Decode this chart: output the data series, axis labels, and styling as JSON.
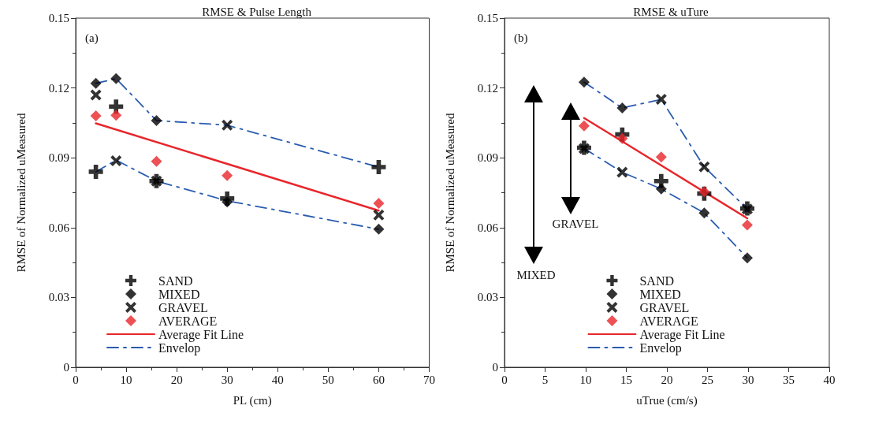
{
  "chart_data": [
    {
      "type": "scatter",
      "title": "RMSE & Pulse Length",
      "xlabel": "PL (cm)",
      "ylabel": "RMSE of Normalized uMeasured",
      "annotations": [
        "(a)"
      ],
      "x": [
        4,
        8,
        16,
        30,
        60
      ],
      "xlim": [
        0,
        70
      ],
      "xticks": [
        0,
        10,
        20,
        30,
        40,
        50,
        60,
        70
      ],
      "ylim": [
        0,
        0.15
      ],
      "yticks": [
        0,
        0.03,
        0.06,
        0.09,
        0.12,
        0.15
      ],
      "grid": false,
      "legend": "bottom left",
      "series": [
        {
          "name": "SAND",
          "color": "#000000",
          "marker": "plus",
          "values": [
            0.084,
            0.112,
            0.08,
            0.0725,
            0.086
          ]
        },
        {
          "name": "MIXED",
          "color": "#000000",
          "marker": "diamond",
          "values": [
            0.122,
            0.124,
            0.106,
            0.071,
            0.0593
          ]
        },
        {
          "name": "GRAVEL",
          "color": "#000000",
          "marker": "cross",
          "values": [
            0.117,
            0.0887,
            0.08,
            0.104,
            0.0654
          ]
        },
        {
          "name": "AVERAGE",
          "color": "#e8262b",
          "marker": "diamond",
          "values": [
            0.108,
            0.1083,
            0.0885,
            0.0824,
            0.0704
          ]
        },
        {
          "name": "Average Fit Line",
          "type": "line",
          "color": "#e8262b",
          "line_style": "solid",
          "x": [
            4,
            60
          ],
          "values": [
            0.1048,
            0.0673
          ]
        },
        {
          "name": "Envelop",
          "type": "line",
          "color": "#2a5cb0",
          "line_style": "dashdot",
          "values": [
            0.122,
            0.124,
            0.106,
            0.104,
            0.086
          ]
        },
        {
          "type": "line",
          "color": "#2a5cb0",
          "line_style": "dashdot",
          "values": [
            0.084,
            0.089,
            0.08,
            0.0715,
            0.0593
          ]
        }
      ]
    },
    {
      "type": "scatter",
      "title": "RMSE & uTure",
      "xlabel": "uTrue (cm/s)",
      "ylabel": "RMSE of Normalized uMeasured",
      "annotations": [
        "(b)",
        "MIXED",
        "GRAVEL"
      ],
      "x": [
        9.8,
        14.5,
        19.3,
        24.6,
        29.9
      ],
      "xlim": [
        0,
        40
      ],
      "xticks": [
        0,
        5,
        10,
        15,
        20,
        25,
        30,
        35,
        40
      ],
      "ylim": [
        0,
        0.15
      ],
      "yticks": [
        0,
        0.03,
        0.06,
        0.09,
        0.12,
        0.15
      ],
      "grid": false,
      "legend": "bottom",
      "series": [
        {
          "name": "SAND",
          "color": "#000000",
          "marker": "plus",
          "values": [
            0.0943,
            0.1,
            0.08,
            0.0746,
            0.0682
          ]
        },
        {
          "name": "MIXED",
          "color": "#000000",
          "marker": "diamond",
          "values": [
            0.1225,
            0.1114,
            0.0766,
            0.0663,
            0.047
          ]
        },
        {
          "name": "GRAVEL",
          "color": "#000000",
          "marker": "cross",
          "values": [
            0.094,
            0.0838,
            0.1151,
            0.0861,
            0.068
          ]
        },
        {
          "name": "AVERAGE",
          "color": "#e8262b",
          "marker": "diamond",
          "values": [
            0.1037,
            0.0983,
            0.0903,
            0.0754,
            0.0611
          ]
        },
        {
          "name": "Average Fit Line",
          "type": "line",
          "color": "#e8262b",
          "line_style": "solid",
          "x": [
            9.8,
            29.9
          ],
          "values": [
            0.1071,
            0.064
          ]
        },
        {
          "name": "Envelop",
          "type": "line",
          "color": "#2a5cb0",
          "line_style": "dashdot",
          "values": [
            0.1225,
            0.1114,
            0.1151,
            0.0861,
            0.068
          ]
        },
        {
          "type": "line",
          "color": "#2a5cb0",
          "line_style": "dashdot",
          "values": [
            0.094,
            0.0838,
            0.0766,
            0.0663,
            0.047
          ]
        }
      ]
    }
  ]
}
